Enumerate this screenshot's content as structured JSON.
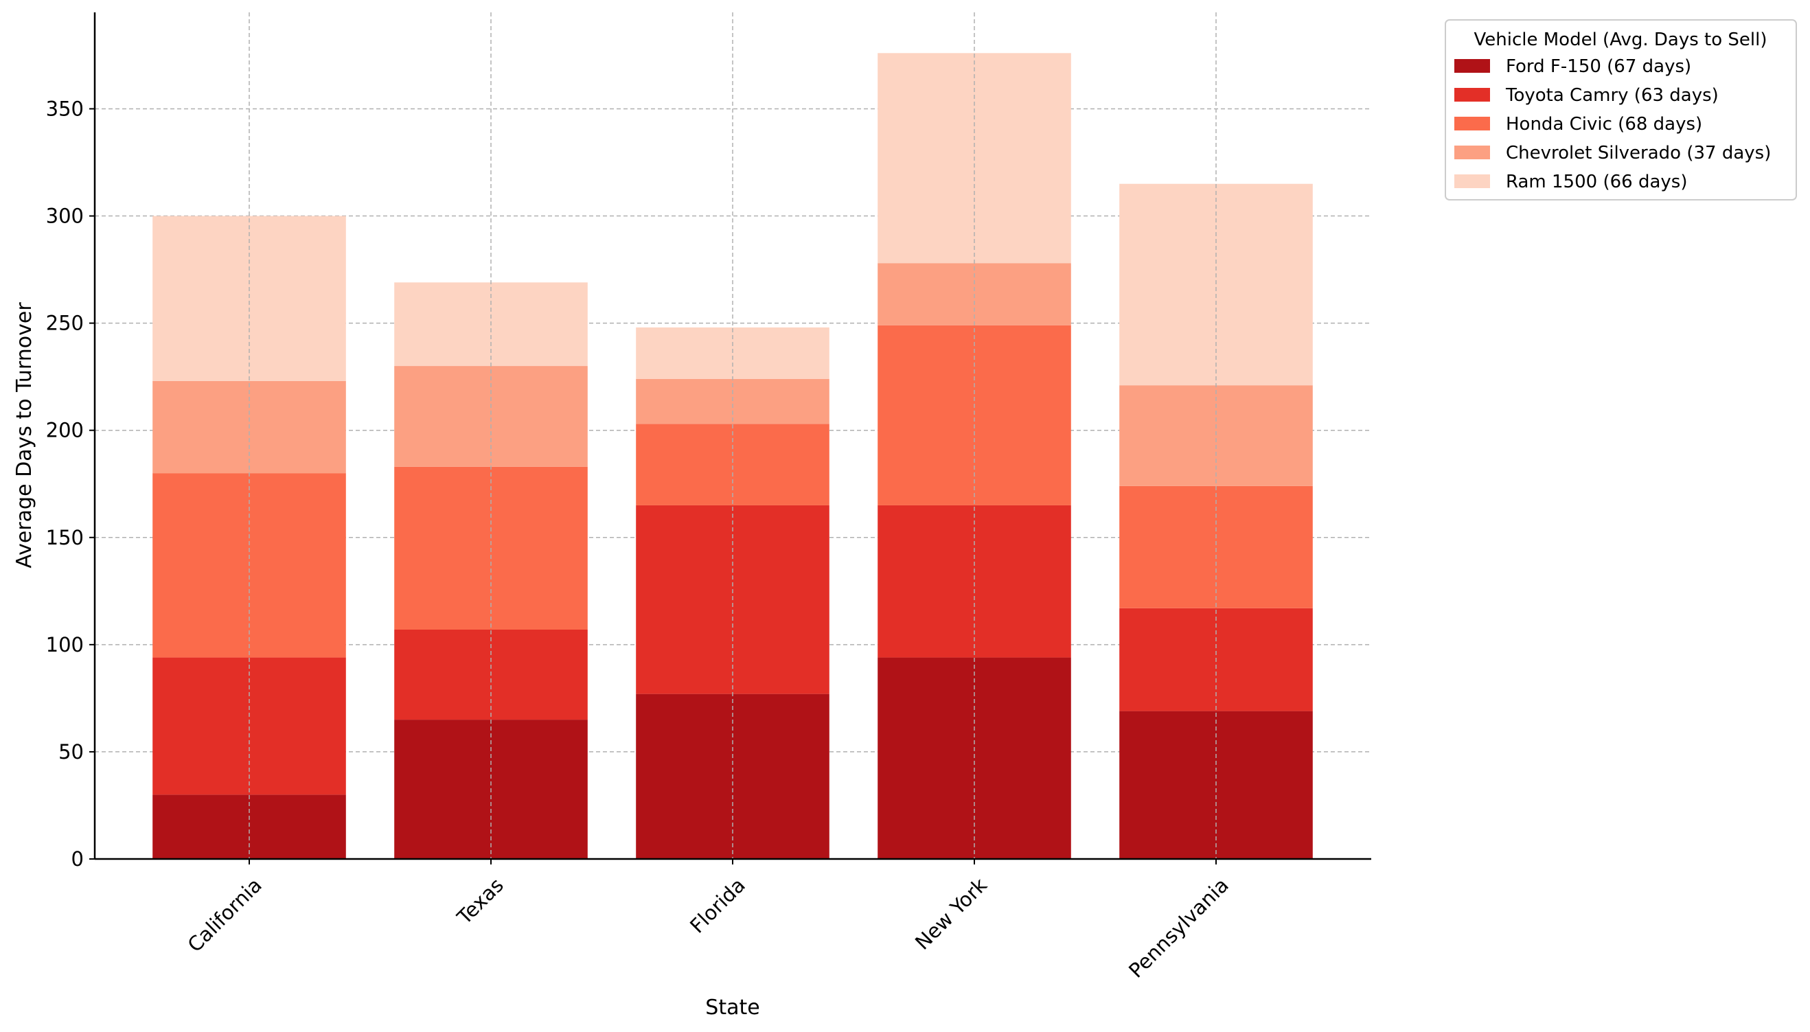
{
  "chart_data": {
    "type": "bar",
    "stacked": true,
    "title": "",
    "xlabel": "State",
    "ylabel": "Average Days to Turnover",
    "ylim": [
      0,
      395
    ],
    "yticks": [
      0,
      50,
      100,
      150,
      200,
      250,
      300,
      350
    ],
    "grid": true,
    "categories": [
      "California",
      "Texas",
      "Florida",
      "New York",
      "Pennsylvania"
    ],
    "legend": {
      "title": "Vehicle Model (Avg. Days to Sell)",
      "placement": "outside-top-right"
    },
    "series": [
      {
        "name": "Ford F-150 (67 days)",
        "color": "#b01217",
        "values": [
          30,
          65,
          77,
          94,
          69
        ]
      },
      {
        "name": "Toyota Camry (63 days)",
        "color": "#e32f27",
        "values": [
          64,
          42,
          88,
          71,
          48
        ]
      },
      {
        "name": "Honda Civic (68 days)",
        "color": "#fb6b4b",
        "values": [
          86,
          76,
          38,
          84,
          57
        ]
      },
      {
        "name": "Chevrolet Silverado (37 days)",
        "color": "#fca082",
        "values": [
          43,
          47,
          21,
          29,
          47
        ]
      },
      {
        "name": "Ram 1500 (66 days)",
        "color": "#fdd4c2",
        "values": [
          77,
          39,
          24,
          98,
          94
        ]
      }
    ]
  }
}
